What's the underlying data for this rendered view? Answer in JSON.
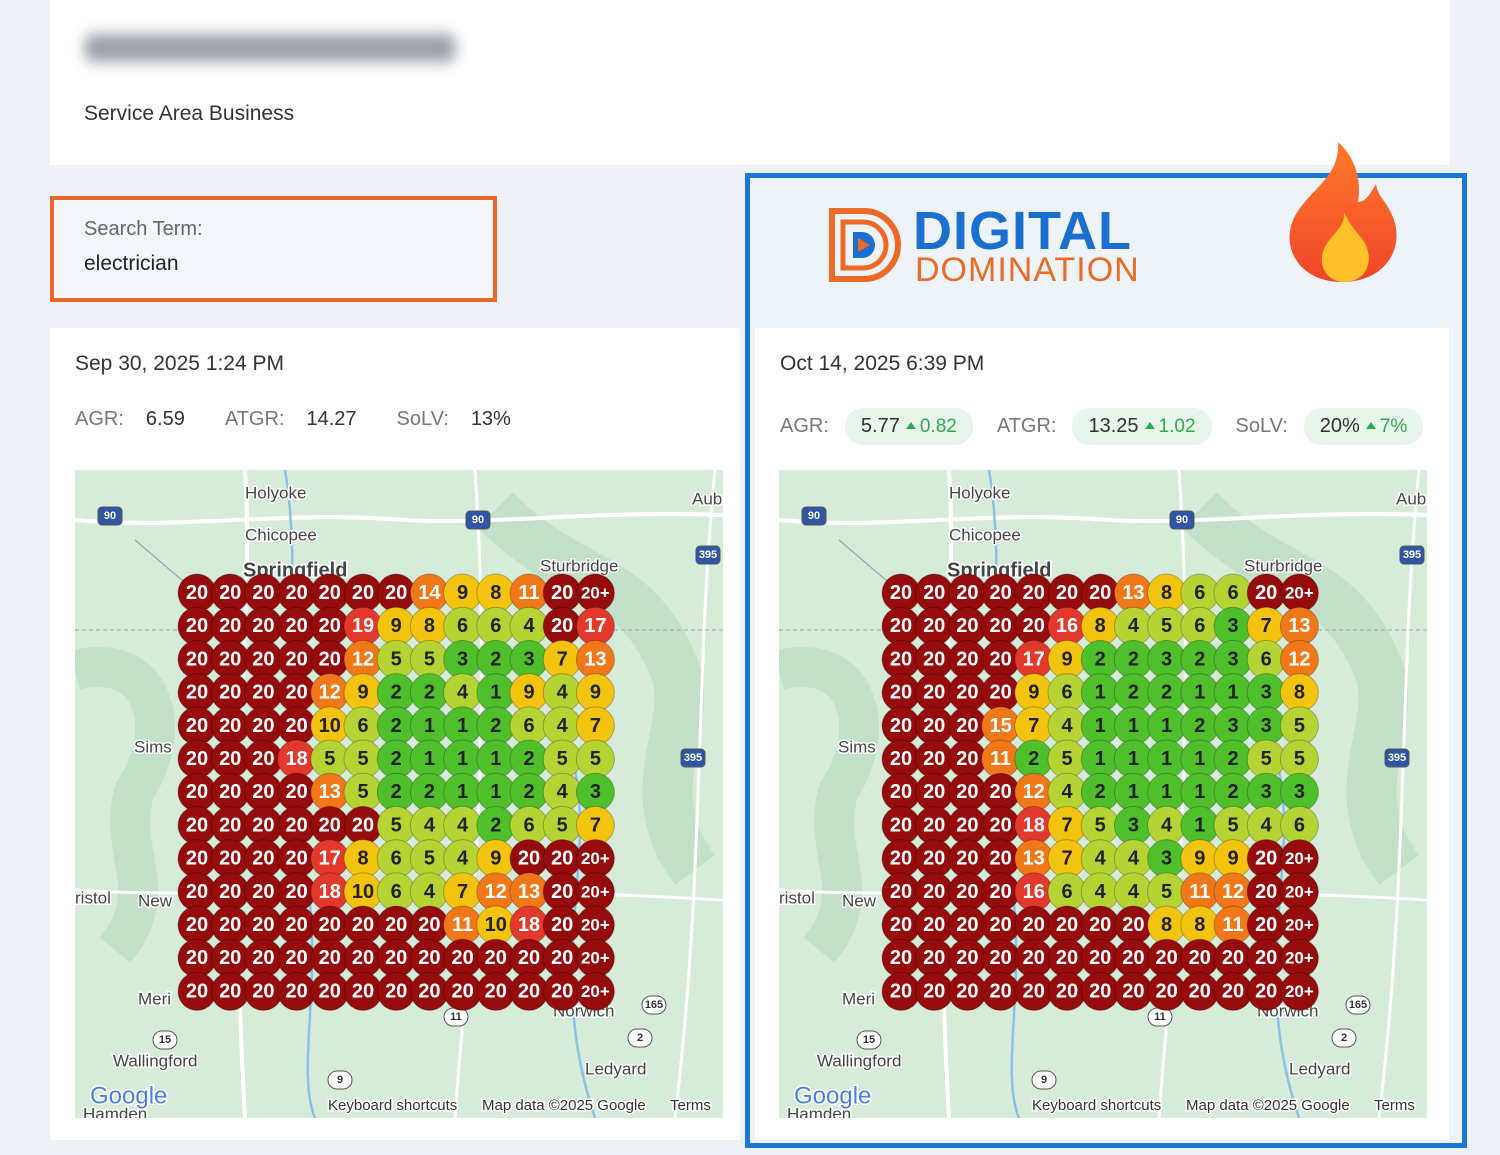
{
  "header": {
    "subtitle": "Service Area Business"
  },
  "search": {
    "label": "Search Term:",
    "term": "electrician"
  },
  "logo": {
    "line1": "DIGITAL",
    "line2": "DOMINATION"
  },
  "map_labels": [
    "Holyoke",
    "Chicopee",
    "Springfield",
    "Sturbridge",
    "Aub",
    "Sims",
    "ristol",
    "New",
    "Meri",
    "Wallingford",
    "Ledyard",
    "Norwich",
    "Hamden",
    "Google",
    "Keyboard shortcuts",
    "Map data ©2025 Google",
    "Terms"
  ],
  "map_shields": [
    "90",
    "90",
    "395",
    "395",
    "15",
    "11",
    "165",
    "2",
    "9"
  ],
  "reports": [
    {
      "date": "Sep 30, 2025 1:24 PM",
      "metrics": [
        {
          "label": "AGR:",
          "value": 6.59
        },
        {
          "label": "ATGR:",
          "value": 14.27
        },
        {
          "label": "SoLV:",
          "value": "13%"
        }
      ],
      "grid": [
        [
          20,
          20,
          20,
          20,
          20,
          20,
          20,
          14,
          9,
          8,
          11,
          20,
          "20+"
        ],
        [
          20,
          20,
          20,
          20,
          20,
          19,
          9,
          8,
          6,
          6,
          4,
          20,
          17
        ],
        [
          20,
          20,
          20,
          20,
          20,
          12,
          5,
          5,
          3,
          2,
          3,
          7,
          13
        ],
        [
          20,
          20,
          20,
          20,
          12,
          9,
          2,
          2,
          4,
          1,
          9,
          4,
          9
        ],
        [
          20,
          20,
          20,
          20,
          10,
          6,
          2,
          1,
          1,
          2,
          6,
          4,
          7
        ],
        [
          20,
          20,
          20,
          18,
          5,
          5,
          2,
          1,
          1,
          1,
          2,
          5,
          5
        ],
        [
          20,
          20,
          20,
          20,
          13,
          5,
          2,
          2,
          1,
          1,
          2,
          4,
          3
        ],
        [
          20,
          20,
          20,
          20,
          20,
          20,
          5,
          4,
          4,
          2,
          6,
          5,
          7
        ],
        [
          20,
          20,
          20,
          20,
          17,
          8,
          6,
          5,
          4,
          9,
          20,
          20,
          "20+"
        ],
        [
          20,
          20,
          20,
          20,
          18,
          10,
          6,
          4,
          7,
          12,
          13,
          20,
          "20+"
        ],
        [
          20,
          20,
          20,
          20,
          20,
          20,
          20,
          20,
          11,
          10,
          18,
          20,
          "20+"
        ],
        [
          20,
          20,
          20,
          20,
          20,
          20,
          20,
          20,
          20,
          20,
          20,
          20,
          "20+"
        ],
        [
          20,
          20,
          20,
          20,
          20,
          20,
          20,
          20,
          20,
          20,
          20,
          20,
          "20+"
        ]
      ]
    },
    {
      "date": "Oct 14, 2025 6:39 PM",
      "metrics": [
        {
          "label": "AGR:",
          "value": 5.77,
          "change": 0.82
        },
        {
          "label": "ATGR:",
          "value": 13.25,
          "change": 1.02
        },
        {
          "label": "SoLV:",
          "value": "20%",
          "change": "7%"
        }
      ],
      "grid": [
        [
          20,
          20,
          20,
          20,
          20,
          20,
          20,
          13,
          8,
          6,
          6,
          20,
          "20+"
        ],
        [
          20,
          20,
          20,
          20,
          20,
          16,
          8,
          4,
          5,
          6,
          3,
          7,
          13
        ],
        [
          20,
          20,
          20,
          20,
          17,
          9,
          2,
          2,
          3,
          2,
          3,
          6,
          12
        ],
        [
          20,
          20,
          20,
          20,
          9,
          6,
          1,
          2,
          2,
          1,
          1,
          3,
          8
        ],
        [
          20,
          20,
          20,
          15,
          7,
          4,
          1,
          1,
          1,
          2,
          3,
          3,
          5
        ],
        [
          20,
          20,
          20,
          11,
          2,
          5,
          1,
          1,
          1,
          1,
          2,
          5,
          5
        ],
        [
          20,
          20,
          20,
          20,
          12,
          4,
          2,
          1,
          1,
          1,
          2,
          3,
          3
        ],
        [
          20,
          20,
          20,
          20,
          18,
          7,
          5,
          3,
          4,
          1,
          5,
          4,
          6
        ],
        [
          20,
          20,
          20,
          20,
          13,
          7,
          4,
          4,
          3,
          9,
          9,
          20,
          "20+"
        ],
        [
          20,
          20,
          20,
          20,
          16,
          6,
          4,
          4,
          5,
          11,
          12,
          20,
          "20+"
        ],
        [
          20,
          20,
          20,
          20,
          20,
          20,
          20,
          20,
          8,
          8,
          11,
          20,
          "20+"
        ],
        [
          20,
          20,
          20,
          20,
          20,
          20,
          20,
          20,
          20,
          20,
          20,
          20,
          "20+"
        ],
        [
          20,
          20,
          20,
          20,
          20,
          20,
          20,
          20,
          20,
          20,
          20,
          20,
          "20+"
        ]
      ]
    }
  ]
}
